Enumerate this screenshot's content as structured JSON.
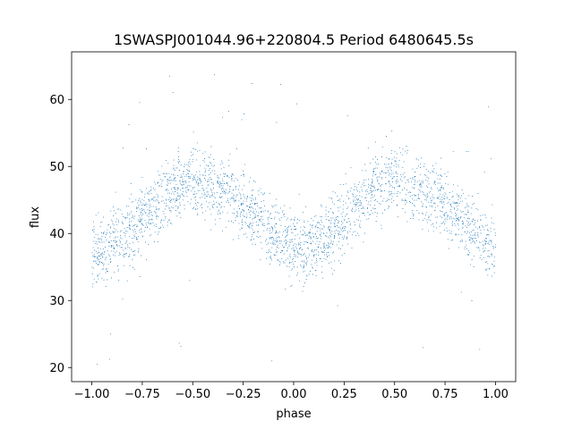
{
  "chart_data": {
    "type": "scatter",
    "title": "1SWASPJ001044.96+220804.5 Period 6480645.5s",
    "xlabel": "phase",
    "ylabel": "flux",
    "xlim": [
      -1.1,
      1.1
    ],
    "ylim": [
      17.9,
      67.1
    ],
    "x_ticks": [
      -1.0,
      -0.75,
      -0.5,
      -0.25,
      0.0,
      0.25,
      0.5,
      0.75,
      1.0
    ],
    "x_tick_labels": [
      "−1.00",
      "−0.75",
      "−0.50",
      "−0.25",
      "0.00",
      "0.25",
      "0.50",
      "0.75",
      "1.00"
    ],
    "y_ticks": [
      20,
      30,
      40,
      50,
      60
    ],
    "y_tick_labels": [
      "20",
      "30",
      "40",
      "50",
      "60"
    ],
    "grid": false,
    "marker_color": "#1f77b4",
    "series": [
      {
        "points_phase_flux": [
          [
            -1.0,
            37.5
          ],
          [
            -0.97,
            36.8
          ],
          [
            -0.93,
            37.5
          ],
          [
            -0.9,
            38.6
          ],
          [
            -0.85,
            39.5
          ],
          [
            -0.8,
            40.8
          ],
          [
            -0.75,
            42.0
          ],
          [
            -0.7,
            43.6
          ],
          [
            -0.65,
            45.2
          ],
          [
            -0.6,
            46.6
          ],
          [
            -0.55,
            47.6
          ],
          [
            -0.5,
            47.8
          ],
          [
            -0.45,
            47.4
          ],
          [
            -0.4,
            46.6
          ],
          [
            -0.35,
            46.0
          ],
          [
            -0.3,
            45.6
          ],
          [
            -0.25,
            44.4
          ],
          [
            -0.2,
            43.0
          ],
          [
            -0.15,
            41.6
          ],
          [
            -0.1,
            40.2
          ],
          [
            -0.05,
            38.8
          ],
          [
            0.0,
            37.6
          ],
          [
            0.03,
            36.8
          ],
          [
            0.07,
            37.5
          ],
          [
            0.1,
            38.6
          ],
          [
            0.15,
            39.5
          ],
          [
            0.2,
            40.8
          ],
          [
            0.25,
            42.0
          ],
          [
            0.3,
            43.6
          ],
          [
            0.35,
            45.2
          ],
          [
            0.4,
            46.6
          ],
          [
            0.45,
            47.6
          ],
          [
            0.5,
            47.8
          ],
          [
            0.55,
            47.4
          ],
          [
            0.6,
            46.6
          ],
          [
            0.65,
            46.0
          ],
          [
            0.7,
            45.6
          ],
          [
            0.75,
            44.4
          ],
          [
            0.8,
            43.0
          ],
          [
            0.85,
            41.6
          ],
          [
            0.9,
            40.2
          ],
          [
            0.95,
            38.8
          ],
          [
            1.0,
            38.5
          ]
        ],
        "spread": 4.5,
        "n_points": 7000
      }
    ]
  }
}
